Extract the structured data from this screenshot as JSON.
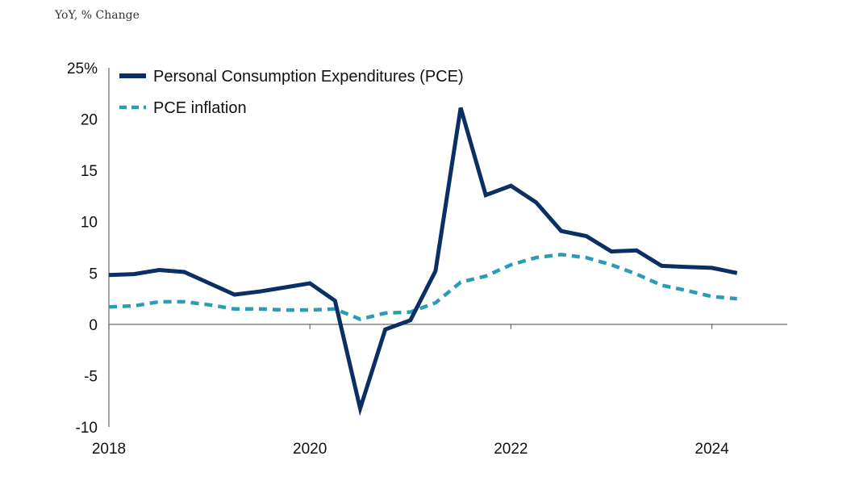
{
  "chart_data": {
    "type": "line",
    "subtitle": "YoY, % Change",
    "ylim": [
      -10,
      25
    ],
    "yticks": [
      {
        "value": 25,
        "label": "25%"
      },
      {
        "value": 20,
        "label": "20"
      },
      {
        "value": 15,
        "label": "15"
      },
      {
        "value": 10,
        "label": "10"
      },
      {
        "value": 5,
        "label": "5"
      },
      {
        "value": 0,
        "label": "0"
      },
      {
        "value": -5,
        "label": "-5"
      },
      {
        "value": -10,
        "label": "-10"
      }
    ],
    "xlim": [
      2018.0,
      2024.75
    ],
    "xticks": [
      {
        "value": 2018,
        "label": "2018"
      },
      {
        "value": 2020,
        "label": "2020"
      },
      {
        "value": 2022,
        "label": "2022"
      },
      {
        "value": 2024,
        "label": "2024"
      }
    ],
    "x": [
      2018.0,
      2018.25,
      2018.5,
      2018.75,
      2019.0,
      2019.25,
      2019.5,
      2019.75,
      2020.0,
      2020.25,
      2020.5,
      2020.75,
      2021.0,
      2021.25,
      2021.5,
      2021.75,
      2022.0,
      2022.25,
      2022.5,
      2022.75,
      2023.0,
      2023.25,
      2023.5,
      2023.75,
      2024.0,
      2024.25
    ],
    "series": [
      {
        "name": "Personal Consumption Expenditures (PCE)",
        "color": "#0b2f63",
        "style": "solid",
        "values": [
          4.8,
          4.9,
          5.3,
          5.1,
          4.0,
          2.9,
          3.2,
          3.6,
          4.0,
          2.3,
          -8.2,
          -0.5,
          0.4,
          5.2,
          21.1,
          12.6,
          13.5,
          11.9,
          9.1,
          8.6,
          7.1,
          7.2,
          5.7,
          5.6,
          5.5,
          5.0
        ]
      },
      {
        "name": "PCE inflation",
        "color": "#2a9db5",
        "style": "dashed",
        "values": [
          1.7,
          1.8,
          2.2,
          2.2,
          1.9,
          1.5,
          1.5,
          1.4,
          1.4,
          1.5,
          0.5,
          1.1,
          1.2,
          2.1,
          4.1,
          4.7,
          5.8,
          6.5,
          6.8,
          6.5,
          5.8,
          4.9,
          3.8,
          3.3,
          2.7,
          2.5
        ]
      }
    ],
    "legend_position": "top-left"
  }
}
